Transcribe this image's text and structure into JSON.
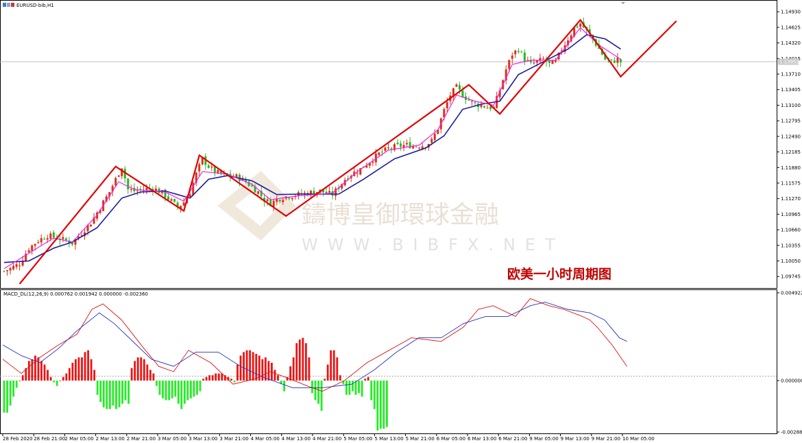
{
  "colors": {
    "bull": "#e03010",
    "bear": "#22bb22",
    "ma_fast": "#ee22ee",
    "ma_slow": "#1a1aa0",
    "zigzag": "#e00000",
    "macd_line": "#dd1111",
    "signal_line": "#2233bb",
    "hist_pos": "#ee1111",
    "hist_neg": "#22ee22",
    "current_price_label_bg": "#c8c8c8"
  },
  "chart_data": [
    {
      "type": "candlestick",
      "title": "EURUSD-bib,H1",
      "ylim": [
        1.096,
        1.15
      ],
      "y_ticks": [
        "1.14930",
        "1.14625",
        "1.14320",
        "1.14015",
        "1.13710",
        "1.13405",
        "1.13100",
        "1.12795",
        "1.12490",
        "1.12185",
        "1.11880",
        "1.11575",
        "1.11270",
        "1.10965",
        "1.10660",
        "1.10355",
        "1.10050",
        "1.09745"
      ],
      "current_price_label": "1.13952",
      "current_price": 1.13952,
      "x_ticks": [
        "28 Feb 2020",
        "28 Feb 21:00",
        "2 Mar 05:00",
        "2 Mar 13:00",
        "2 Mar 21:00",
        "3 Mar 05:00",
        "3 Mar 13:00",
        "3 Mar 21:00",
        "4 Mar 05:00",
        "4 Mar 13:00",
        "4 Mar 21:00",
        "5 Mar 05:00",
        "5 Mar 13:00",
        "5 Mar 21:00",
        "6 Mar 05:00",
        "6 Mar 13:00",
        "6 Mar 21:00",
        "9 Mar 05:00",
        "9 Mar 13:00",
        "9 Mar 21:00",
        "10 Mar 05:00"
      ],
      "close_path": [
        [
          0,
          1.0985
        ],
        [
          2,
          1.099
        ],
        [
          5,
          1.1
        ],
        [
          8,
          1.103
        ],
        [
          11,
          1.1045
        ],
        [
          14,
          1.1055
        ],
        [
          17,
          1.105
        ],
        [
          20,
          1.1045
        ],
        [
          22,
          1.104
        ],
        [
          25,
          1.106
        ],
        [
          28,
          1.108
        ],
        [
          31,
          1.111
        ],
        [
          34,
          1.114
        ],
        [
          36,
          1.1165
        ],
        [
          38,
          1.119
        ],
        [
          40,
          1.1145
        ],
        [
          42,
          1.1142
        ],
        [
          45,
          1.1145
        ],
        [
          48,
          1.1148
        ],
        [
          51,
          1.1138
        ],
        [
          54,
          1.1122
        ],
        [
          56,
          1.111
        ],
        [
          58,
          1.112
        ],
        [
          60,
          1.114
        ],
        [
          62,
          1.1175
        ],
        [
          64,
          1.1205
        ],
        [
          66,
          1.119
        ],
        [
          68,
          1.118
        ],
        [
          70,
          1.1175
        ],
        [
          72,
          1.1172
        ],
        [
          75,
          1.117
        ],
        [
          78,
          1.116
        ],
        [
          80,
          1.115
        ],
        [
          82,
          1.114
        ],
        [
          84,
          1.1125
        ],
        [
          86,
          1.1118
        ],
        [
          88,
          1.1125
        ],
        [
          90,
          1.113
        ],
        [
          92,
          1.1132
        ],
        [
          95,
          1.1135
        ],
        [
          98,
          1.1138
        ],
        [
          100,
          1.114
        ],
        [
          102,
          1.1142
        ],
        [
          104,
          1.1138
        ],
        [
          106,
          1.1135
        ],
        [
          108,
          1.115
        ],
        [
          110,
          1.1165
        ],
        [
          112,
          1.1175
        ],
        [
          115,
          1.1185
        ],
        [
          118,
          1.12
        ],
        [
          121,
          1.1215
        ],
        [
          124,
          1.1225
        ],
        [
          127,
          1.123
        ],
        [
          130,
          1.1232
        ],
        [
          133,
          1.123
        ],
        [
          136,
          1.1232
        ],
        [
          138,
          1.124
        ],
        [
          140,
          1.1265
        ],
        [
          142,
          1.13
        ],
        [
          144,
          1.133
        ],
        [
          146,
          1.1345
        ],
        [
          148,
          1.133
        ],
        [
          150,
          1.132
        ],
        [
          152,
          1.1312
        ],
        [
          154,
          1.131
        ],
        [
          156,
          1.1306
        ],
        [
          158,
          1.1305
        ],
        [
          160,
          1.134
        ],
        [
          162,
          1.138
        ],
        [
          164,
          1.141
        ],
        [
          166,
          1.142
        ],
        [
          168,
          1.14
        ],
        [
          170,
          1.139
        ],
        [
          172,
          1.1395
        ],
        [
          174,
          1.14
        ],
        [
          176,
          1.139
        ],
        [
          178,
          1.1395
        ],
        [
          180,
          1.142
        ],
        [
          182,
          1.144
        ],
        [
          184,
          1.146
        ],
        [
          186,
          1.147
        ],
        [
          188,
          1.1455
        ],
        [
          190,
          1.144
        ],
        [
          192,
          1.142
        ],
        [
          194,
          1.14
        ],
        [
          196,
          1.1395
        ],
        [
          198,
          1.14
        ],
        [
          199,
          1.1395
        ]
      ],
      "ma_fast": [
        [
          0,
          1.099
        ],
        [
          8,
          1.102
        ],
        [
          16,
          1.105
        ],
        [
          22,
          1.1042
        ],
        [
          30,
          1.1095
        ],
        [
          37,
          1.116
        ],
        [
          42,
          1.1145
        ],
        [
          52,
          1.114
        ],
        [
          58,
          1.1122
        ],
        [
          64,
          1.118
        ],
        [
          72,
          1.1175
        ],
        [
          80,
          1.1155
        ],
        [
          86,
          1.1125
        ],
        [
          94,
          1.1132
        ],
        [
          106,
          1.1138
        ],
        [
          114,
          1.118
        ],
        [
          124,
          1.1222
        ],
        [
          134,
          1.1232
        ],
        [
          140,
          1.1262
        ],
        [
          146,
          1.133
        ],
        [
          152,
          1.1318
        ],
        [
          158,
          1.131
        ],
        [
          164,
          1.139
        ],
        [
          170,
          1.1398
        ],
        [
          178,
          1.1398
        ],
        [
          186,
          1.1462
        ],
        [
          192,
          1.1428
        ],
        [
          199,
          1.14
        ]
      ],
      "ma_slow": [
        [
          0,
          1.1002
        ],
        [
          8,
          1.1005
        ],
        [
          16,
          1.103
        ],
        [
          22,
          1.1042
        ],
        [
          30,
          1.107
        ],
        [
          38,
          1.1128
        ],
        [
          44,
          1.114
        ],
        [
          52,
          1.1142
        ],
        [
          60,
          1.1128
        ],
        [
          66,
          1.1165
        ],
        [
          72,
          1.1172
        ],
        [
          80,
          1.1162
        ],
        [
          88,
          1.1135
        ],
        [
          96,
          1.1136
        ],
        [
          108,
          1.1136
        ],
        [
          116,
          1.1165
        ],
        [
          126,
          1.1205
        ],
        [
          136,
          1.1226
        ],
        [
          142,
          1.125
        ],
        [
          148,
          1.1302
        ],
        [
          154,
          1.1312
        ],
        [
          160,
          1.1318
        ],
        [
          166,
          1.137
        ],
        [
          174,
          1.1395
        ],
        [
          182,
          1.142
        ],
        [
          188,
          1.1448
        ],
        [
          194,
          1.144
        ],
        [
          199,
          1.142
        ]
      ],
      "zigzag": [
        [
          5,
          1.096
        ],
        [
          36,
          1.119
        ],
        [
          58,
          1.1103
        ],
        [
          63,
          1.1212
        ],
        [
          91,
          1.1093
        ],
        [
          150,
          1.135
        ],
        [
          160,
          1.1293
        ],
        [
          186,
          1.1477
        ],
        [
          199,
          1.1366
        ],
        [
          217,
          1.1475
        ]
      ],
      "caption": "欧美一小时周期图",
      "watermark": "鑄博皇御環球金融",
      "watermark_url": "WWW.BIBFX.NET"
    },
    {
      "type": "macd",
      "title": "MACD_DL(12,26,9) 0.000762 0.001942 0.000000 -0.002360",
      "ylim": [
        -0.002886,
        0.004922
      ],
      "y_ticks": [
        "0.004922",
        "0.000000",
        "-0.002886"
      ],
      "histogram": [
        -0.0018,
        -0.0018,
        -0.0014,
        -0.0009,
        -0.0004,
        0.0,
        0.0003,
        0.0007,
        0.0011,
        0.0012,
        0.0014,
        0.0013,
        0.0011,
        0.0009,
        0.0006,
        0.0002,
        -0.0001,
        -0.0003,
        0.0,
        0.0002,
        0.0004,
        0.0007,
        0.001,
        0.0012,
        0.0013,
        0.0013,
        0.0016,
        0.0017,
        0.0012,
        0.0006,
        -0.0008,
        -0.0012,
        -0.0015,
        -0.0016,
        -0.0016,
        -0.0014,
        -0.0016,
        -0.0015,
        -0.0013,
        -0.0011,
        -0.0013,
        0.0007,
        0.0011,
        0.0013,
        0.0013,
        0.0012,
        0.0009,
        0.0006,
        0.0004,
        -0.0003,
        -0.0008,
        -0.001,
        -0.0011,
        -0.0011,
        -0.001,
        -0.0009,
        -0.0013,
        -0.0016,
        -0.0013,
        -0.0011,
        -0.001,
        -0.0009,
        -0.0008,
        -0.0006,
        0.0001,
        0.0002,
        0.0003,
        0.0003,
        0.0004,
        0.0004,
        0.0004,
        0.0003,
        0.0002,
        0.0001,
        -0.0001,
        0.0009,
        0.0014,
        0.0016,
        0.0017,
        0.0017,
        0.0016,
        0.0015,
        0.0014,
        0.0012,
        0.0013,
        0.0011,
        0.001,
        0.0006,
        0.0003,
        -0.0002,
        -0.0006,
        0.0002,
        0.0008,
        0.0013,
        0.0021,
        0.0023,
        0.0024,
        0.0021,
        0.0013,
        -0.0007,
        -0.0011,
        -0.0013,
        -0.0017,
        0.0001,
        0.0009,
        0.0017,
        0.0017,
        0.0013,
        0.0003,
        -0.0002,
        -0.0008,
        -0.0008,
        -0.0006,
        -0.0008,
        -0.0007,
        -0.0009,
        0.0001,
        0.0002,
        -0.0011,
        -0.0016,
        -0.0028,
        -0.0027,
        -0.0027,
        -0.0026
      ],
      "macd_line": [
        [
          0,
          0.0012
        ],
        [
          5,
          0.0004
        ],
        [
          10,
          0.0013
        ],
        [
          15,
          0.002
        ],
        [
          20,
          0.0026
        ],
        [
          24,
          0.004
        ],
        [
          27,
          0.0043
        ],
        [
          32,
          0.0034
        ],
        [
          38,
          0.0018
        ],
        [
          42,
          0.0008
        ],
        [
          46,
          0.0005
        ],
        [
          50,
          0.0017
        ],
        [
          56,
          0.001
        ],
        [
          62,
          -0.0002
        ],
        [
          68,
          0.0001
        ],
        [
          72,
          0.0005
        ],
        [
          76,
          0.0002
        ],
        [
          82,
          -0.0003
        ],
        [
          86,
          -0.0006
        ],
        [
          92,
          0.0
        ],
        [
          98,
          0.001
        ],
        [
          104,
          0.0017
        ],
        [
          110,
          0.0024
        ],
        [
          118,
          0.0022
        ],
        [
          124,
          0.003
        ],
        [
          128,
          0.004
        ],
        [
          132,
          0.0042
        ],
        [
          138,
          0.0036
        ],
        [
          142,
          0.0046
        ],
        [
          147,
          0.0042
        ],
        [
          151,
          0.004
        ],
        [
          156,
          0.0036
        ],
        [
          158,
          0.0034
        ],
        [
          160,
          0.003
        ],
        [
          164,
          0.002
        ],
        [
          168,
          0.0008
        ]
      ],
      "signal_line": [
        [
          0,
          0.002
        ],
        [
          5,
          0.0014
        ],
        [
          10,
          0.001
        ],
        [
          15,
          0.0018
        ],
        [
          20,
          0.0028
        ],
        [
          26,
          0.0038
        ],
        [
          30,
          0.0032
        ],
        [
          36,
          0.002
        ],
        [
          40,
          0.0012
        ],
        [
          46,
          0.0008
        ],
        [
          52,
          0.0016
        ],
        [
          58,
          0.0016
        ],
        [
          64,
          0.0008
        ],
        [
          70,
          0.0002
        ],
        [
          78,
          -0.0004
        ],
        [
          86,
          -0.0004
        ],
        [
          94,
          -0.0002
        ],
        [
          100,
          0.0006
        ],
        [
          106,
          0.0016
        ],
        [
          112,
          0.0024
        ],
        [
          118,
          0.0024
        ],
        [
          124,
          0.0032
        ],
        [
          130,
          0.0036
        ],
        [
          136,
          0.0036
        ],
        [
          142,
          0.0042
        ],
        [
          146,
          0.0044
        ],
        [
          152,
          0.004
        ],
        [
          158,
          0.0038
        ],
        [
          162,
          0.0034
        ],
        [
          166,
          0.0024
        ],
        [
          168,
          0.0022
        ]
      ]
    }
  ]
}
